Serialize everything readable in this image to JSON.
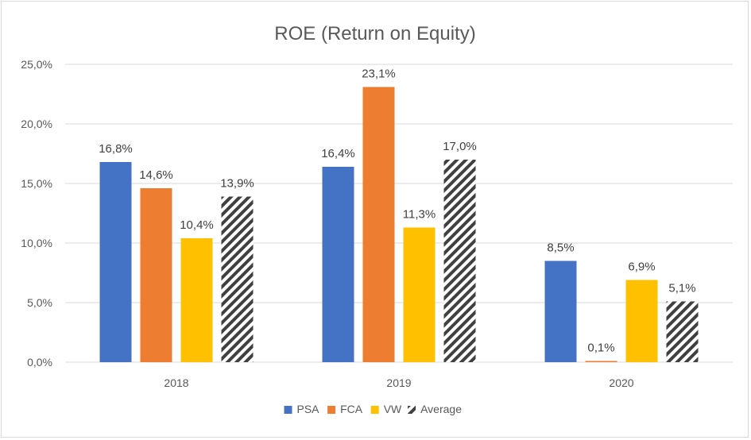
{
  "chart_data": {
    "type": "bar",
    "title": "ROE (Return on Equity)",
    "categories": [
      "2018",
      "2019",
      "2020"
    ],
    "series": [
      {
        "name": "PSA",
        "values": [
          16.8,
          16.4,
          8.5
        ],
        "labels": [
          "16,8%",
          "16,4%",
          "8,5%"
        ],
        "color": "#4472c4"
      },
      {
        "name": "FCA",
        "values": [
          14.6,
          23.1,
          0.1
        ],
        "labels": [
          "14,6%",
          "23,1%",
          "0,1%"
        ],
        "color": "#ed7d31"
      },
      {
        "name": "VW",
        "values": [
          10.4,
          11.3,
          6.9
        ],
        "labels": [
          "10,4%",
          "11,3%",
          "6,9%"
        ],
        "color": "#ffc000"
      },
      {
        "name": "Average",
        "values": [
          13.9,
          17.0,
          5.1
        ],
        "labels": [
          "13,9%",
          "17,0%",
          "5,1%"
        ],
        "color": "#404040",
        "pattern": "diagonal-hatch"
      }
    ],
    "y_ticks": [
      "0,0%",
      "5,0%",
      "10,0%",
      "15,0%",
      "20,0%",
      "25,0%"
    ],
    "ylim": [
      0,
      25
    ],
    "grid": true,
    "legend_position": "bottom"
  }
}
